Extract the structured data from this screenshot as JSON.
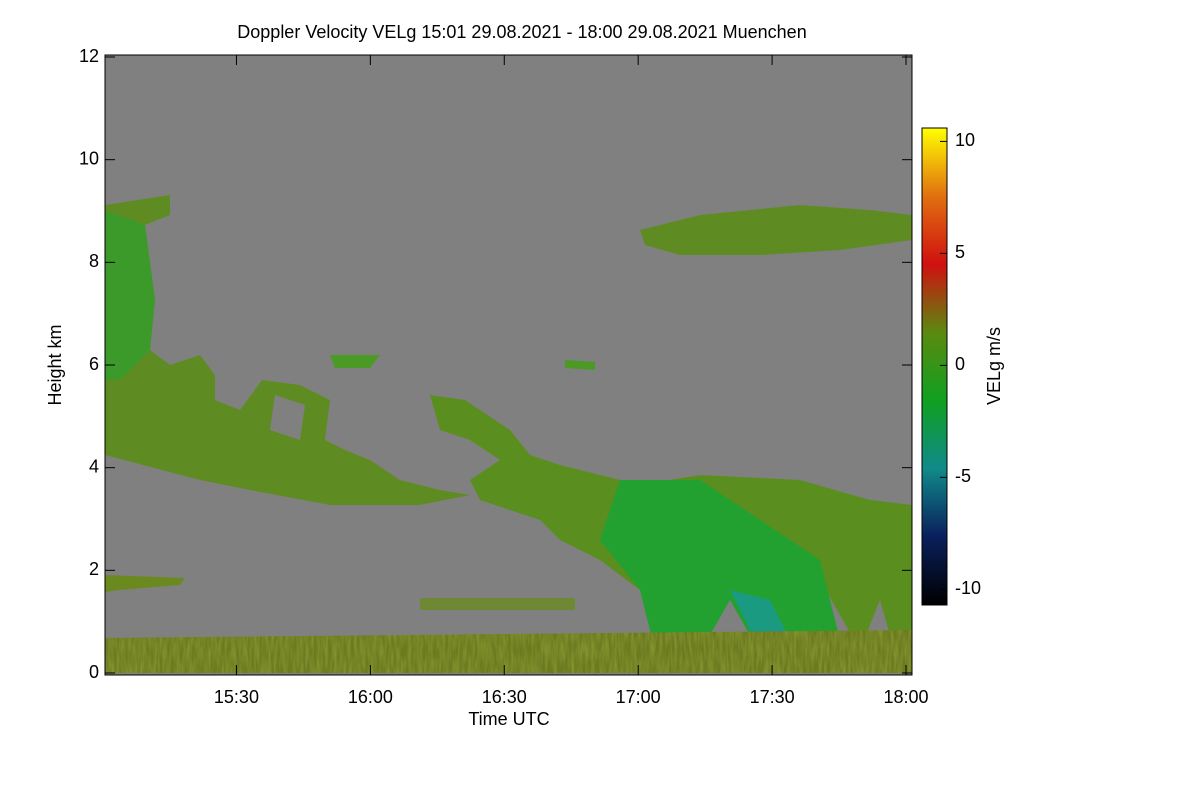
{
  "chart_data": {
    "type": "heatmap",
    "title": "Doppler Velocity VELg   15:01 29.08.2021 - 18:00 29.08.2021 Muenchen",
    "x_label": "Time UTC",
    "y_label": "Height km",
    "xlim": [
      15.0167,
      18.0
    ],
    "xticks": [
      {
        "value": 15.5,
        "label": "15:30"
      },
      {
        "value": 16.0,
        "label": "16:00"
      },
      {
        "value": 16.5,
        "label": "16:30"
      },
      {
        "value": 17.0,
        "label": "17:00"
      },
      {
        "value": 17.5,
        "label": "17:30"
      },
      {
        "value": 18.0,
        "label": "18:00"
      }
    ],
    "ylim": [
      0,
      12
    ],
    "yticks": [
      0,
      2,
      4,
      6,
      8,
      10,
      12
    ],
    "colorbar": {
      "label": "VELg m/s",
      "lim": [
        -10.7,
        10.6
      ],
      "ticks": [
        -10,
        -5,
        0,
        5,
        10
      ],
      "colors": [
        "#000000",
        "#0a1f5c",
        "#108a8a",
        "#10a020",
        "#5a8a10",
        "#d01010",
        "#e07010",
        "#ffff00"
      ]
    }
  }
}
